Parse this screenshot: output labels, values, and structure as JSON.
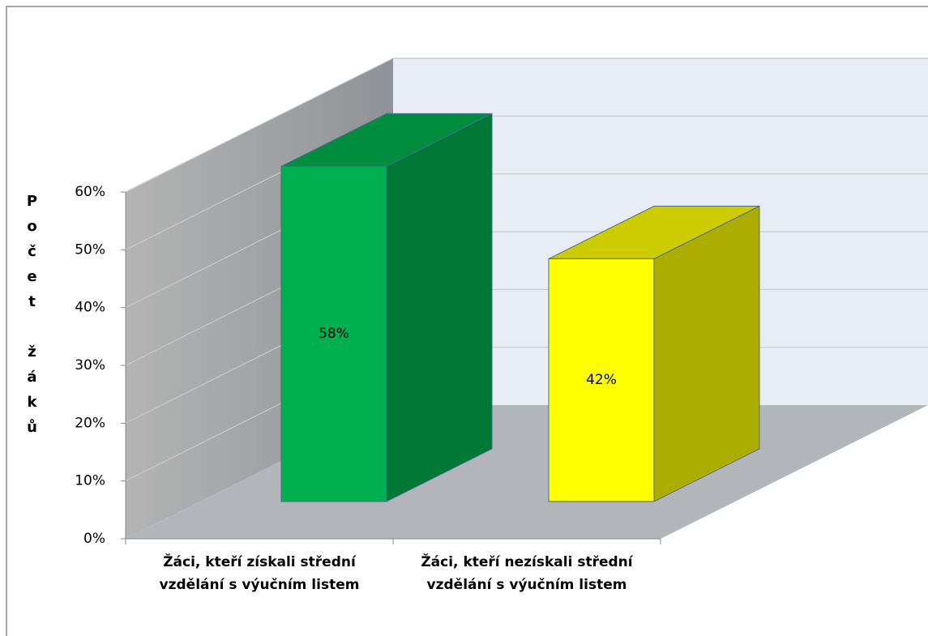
{
  "chart_data": {
    "type": "bar3d",
    "y_label": "Počet žáků",
    "categories": [
      "Žáci, kteří získali střední vzdělání s výučním listem",
      "Žáci, kteří nezískali střední vzdělání s výučním listem"
    ],
    "values": [
      58,
      42
    ],
    "value_labels": [
      "58%",
      "42%"
    ],
    "colors": [
      "#00b050",
      "#ffff00"
    ],
    "ylim": [
      0,
      60
    ],
    "yticks": [
      {
        "value": 0,
        "label": "0%"
      },
      {
        "value": 10,
        "label": "10%"
      },
      {
        "value": 20,
        "label": "20%"
      },
      {
        "value": 30,
        "label": "30%"
      },
      {
        "value": 40,
        "label": "40%"
      },
      {
        "value": 50,
        "label": "50%"
      },
      {
        "value": 60,
        "label": "60%"
      }
    ],
    "grid": true
  }
}
